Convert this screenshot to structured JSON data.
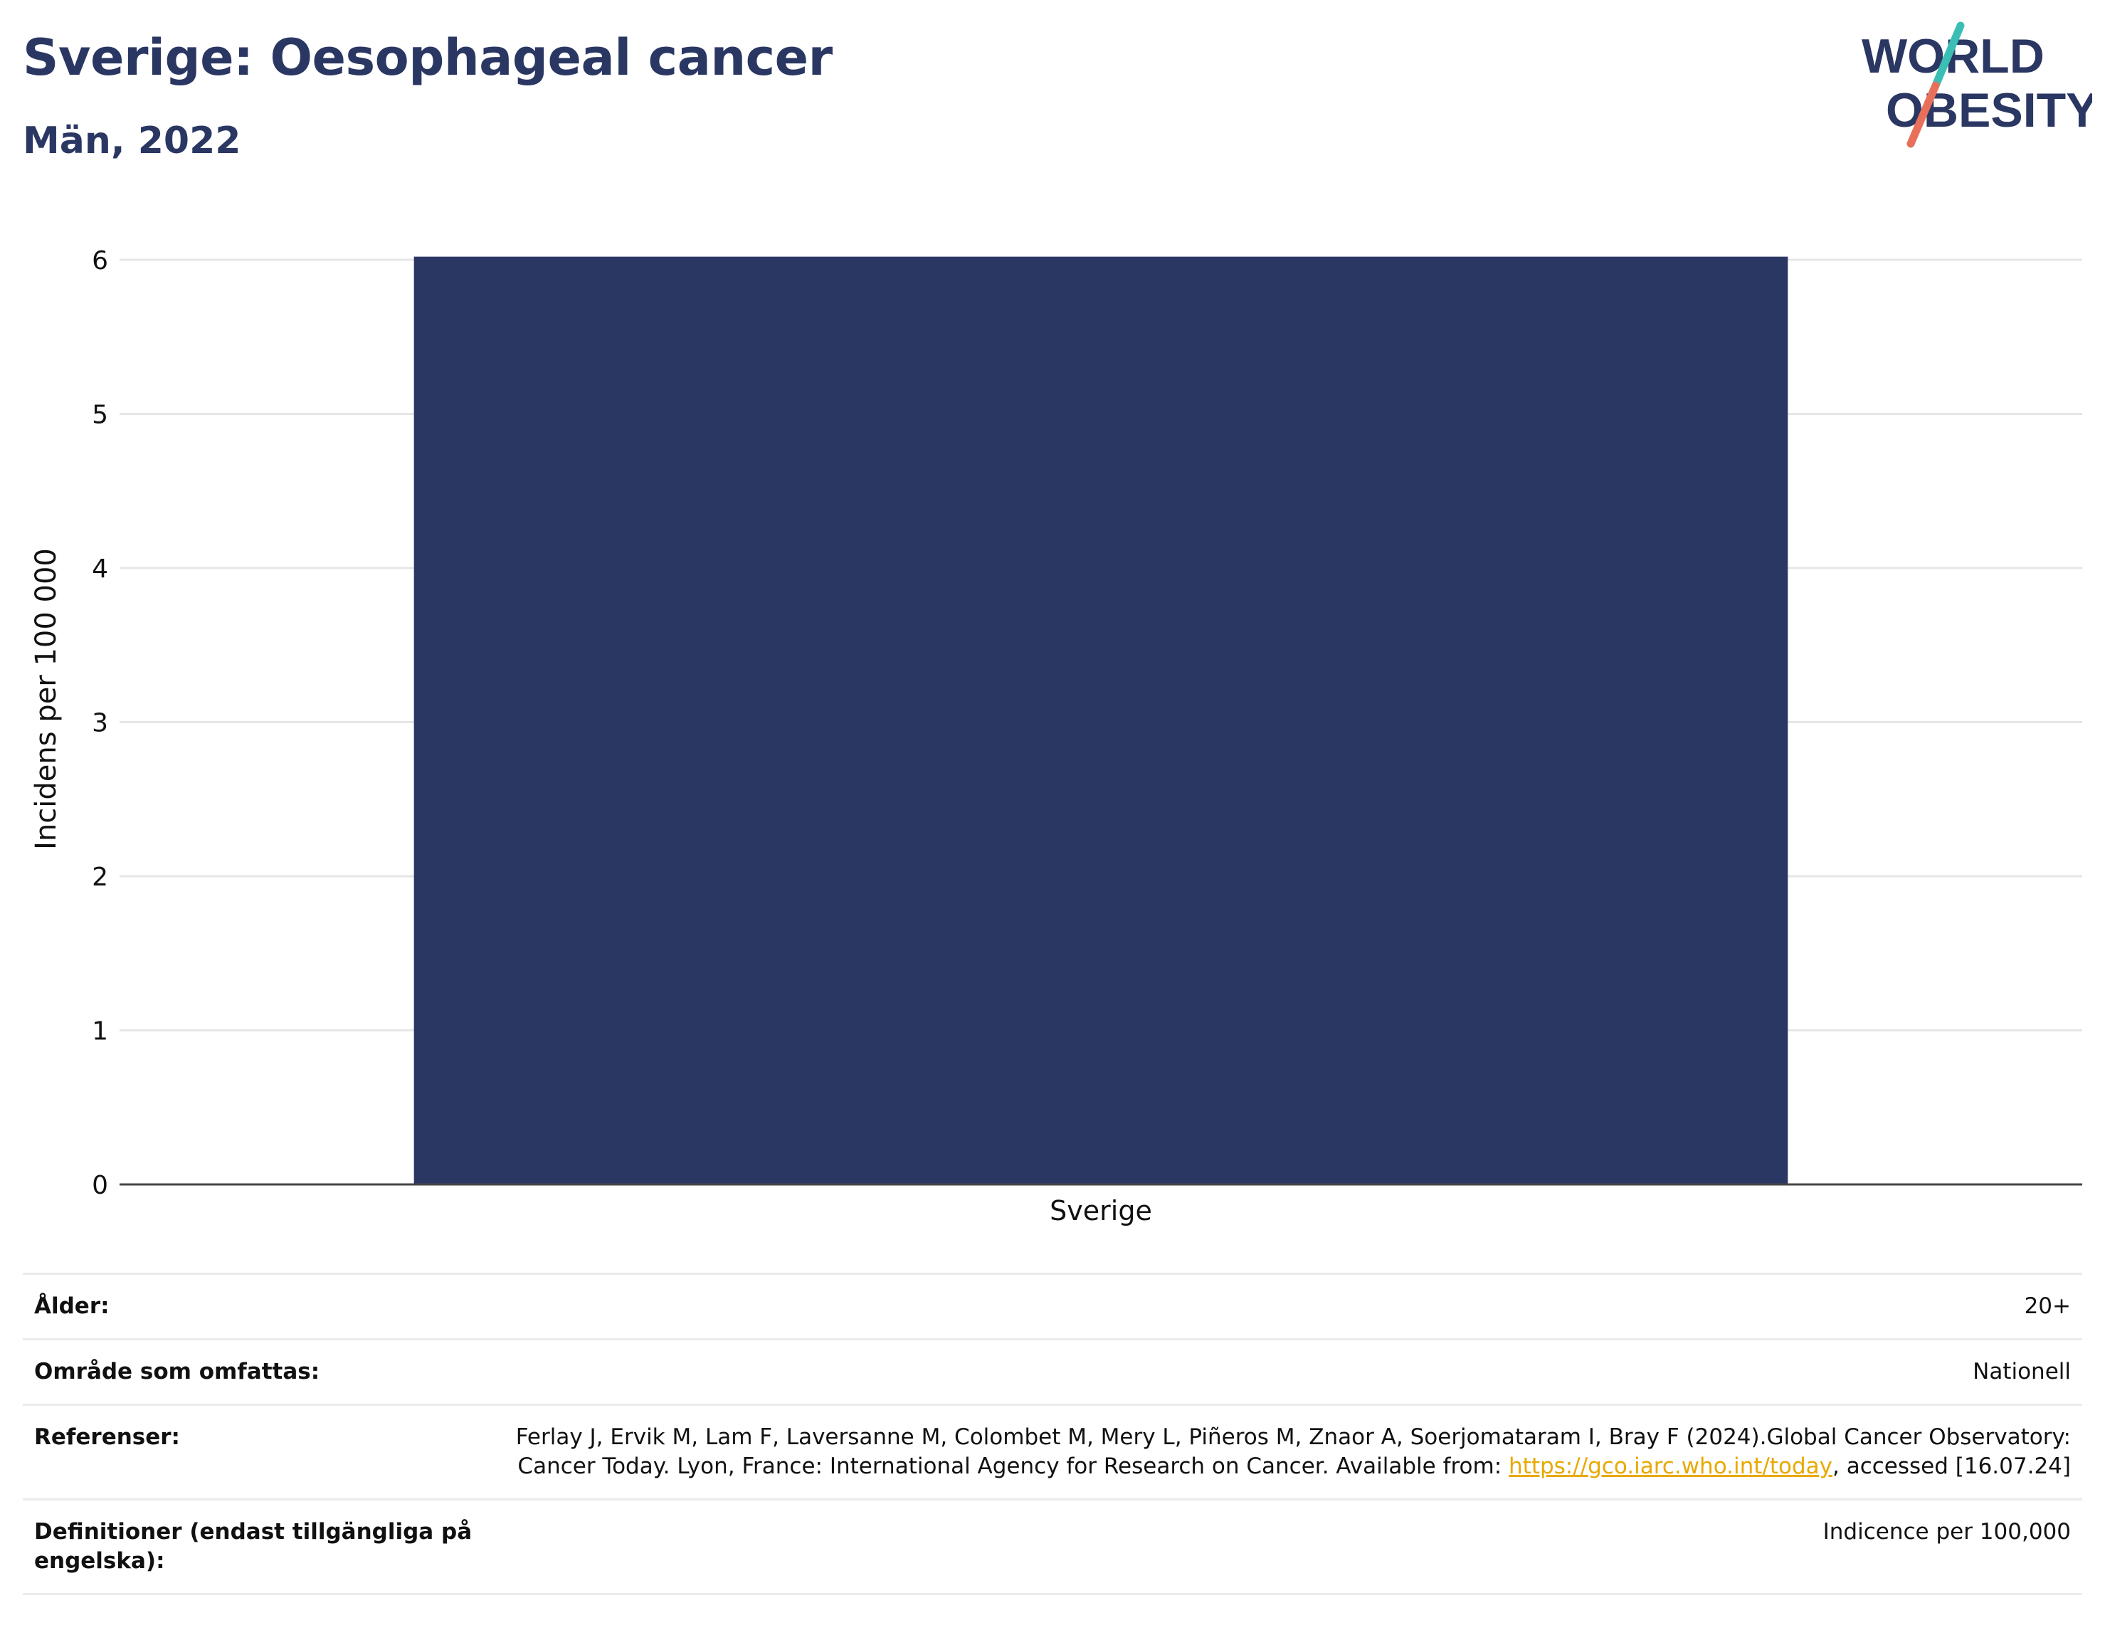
{
  "header": {
    "title": "Sverige: Oesophageal cancer",
    "subtitle": "Män, 2022"
  },
  "logo": {
    "line1": "WORLD",
    "line2": "OBESITY",
    "colors": {
      "text": "#2b3763",
      "slash_top": "#3bbfb4",
      "slash_bottom": "#e8705a"
    }
  },
  "chart_data": {
    "type": "bar",
    "categories": [
      "Sverige"
    ],
    "values": [
      6.02
    ],
    "title": "Sverige: Oesophageal cancer",
    "subtitle": "Män, 2022",
    "xlabel": "",
    "ylabel": "Incidens per 100 000",
    "ylim": [
      0,
      6.3
    ],
    "yticks": [
      "0",
      "1",
      "2",
      "3",
      "4",
      "5",
      "6"
    ],
    "grid": true,
    "legend": "none",
    "bar_color": "#2b3763"
  },
  "info": {
    "rows": [
      {
        "key": "Ålder:",
        "value": "20+"
      },
      {
        "key": "Område som omfattas:",
        "value": "Nationell"
      },
      {
        "key": "Referenser:",
        "value_before": "Ferlay J, Ervik M, Lam F, Laversanne M, Colombet M, Mery L, Piñeros M, Znaor A, Soerjomataram I, Bray F (2024).Global Cancer Observatory: Cancer Today. Lyon, France: International Agency for Research on Cancer. Available from: ",
        "link": "https://gco.iarc.who.int/today",
        "value_after": ", accessed [16.07.24]"
      },
      {
        "key": "Definitioner (endast tillgängliga på engelska):",
        "value": "Indicence per 100,000"
      }
    ]
  }
}
